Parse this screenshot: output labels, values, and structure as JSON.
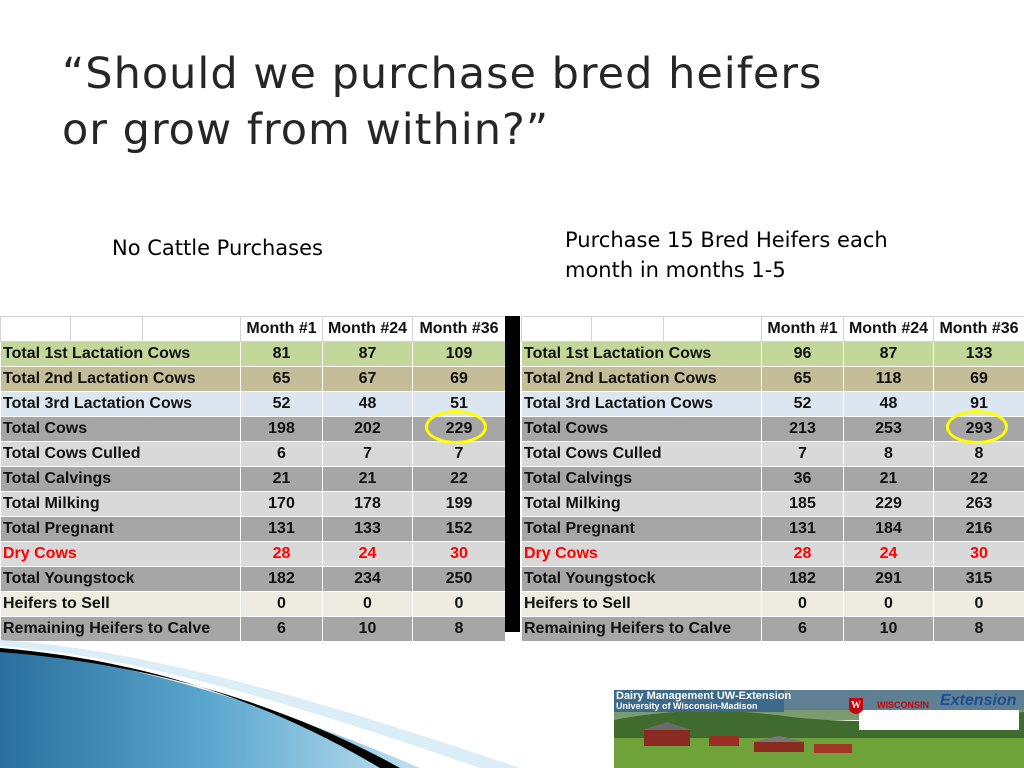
{
  "slide": {
    "title_line1": "“Should we purchase bred heifers",
    "title_line2": "or grow from within?”"
  },
  "scenarios": {
    "left_label": "No Cattle Purchases",
    "right_label_line1": "Purchase 15 Bred Heifers each",
    "right_label_line2": "month in months 1-5"
  },
  "table_left": {
    "headers": [
      "Month #1",
      "Month #24",
      "Month #36"
    ],
    "rows": [
      {
        "label": "Total 1st Lactation Cows",
        "values": [
          "81",
          "87",
          "109"
        ]
      },
      {
        "label": "Total 2nd Lactation Cows",
        "values": [
          "65",
          "67",
          "69"
        ]
      },
      {
        "label": "Total 3rd Lactation Cows",
        "values": [
          "52",
          "48",
          "51"
        ]
      },
      {
        "label": "Total Cows",
        "values": [
          "198",
          "202",
          "229"
        ]
      },
      {
        "label": "Total Cows Culled",
        "values": [
          "6",
          "7",
          "7"
        ]
      },
      {
        "label": "Total Calvings",
        "values": [
          "21",
          "21",
          "22"
        ]
      },
      {
        "label": "Total Milking",
        "values": [
          "170",
          "178",
          "199"
        ]
      },
      {
        "label": "Total Pregnant",
        "values": [
          "131",
          "133",
          "152"
        ]
      },
      {
        "label": "Dry Cows",
        "values": [
          "28",
          "24",
          "30"
        ]
      },
      {
        "label": "Total Youngstock",
        "values": [
          "182",
          "234",
          "250"
        ]
      },
      {
        "label": "Heifers to Sell",
        "values": [
          "0",
          "0",
          "0"
        ]
      },
      {
        "label": "Remaining Heifers to Calve",
        "values": [
          "6",
          "10",
          "8"
        ]
      }
    ]
  },
  "table_right": {
    "headers": [
      "Month #1",
      "Month #24",
      "Month #36"
    ],
    "rows": [
      {
        "label": "Total 1st Lactation Cows",
        "values": [
          "96",
          "87",
          "133"
        ]
      },
      {
        "label": "Total 2nd Lactation Cows",
        "values": [
          "65",
          "118",
          "69"
        ]
      },
      {
        "label": "Total 3rd Lactation Cows",
        "values": [
          "52",
          "48",
          "91"
        ]
      },
      {
        "label": "Total Cows",
        "values": [
          "213",
          "253",
          "293"
        ]
      },
      {
        "label": "Total Cows Culled",
        "values": [
          "7",
          "8",
          "8"
        ]
      },
      {
        "label": "Total Calvings",
        "values": [
          "36",
          "21",
          "22"
        ]
      },
      {
        "label": "Total Milking",
        "values": [
          "185",
          "229",
          "263"
        ]
      },
      {
        "label": "Total Pregnant",
        "values": [
          "131",
          "184",
          "216"
        ]
      },
      {
        "label": "Dry Cows",
        "values": [
          "28",
          "24",
          "30"
        ]
      },
      {
        "label": "Total Youngstock",
        "values": [
          "182",
          "291",
          "315"
        ]
      },
      {
        "label": "Heifers to Sell",
        "values": [
          "0",
          "0",
          "0"
        ]
      },
      {
        "label": "Remaining Heifers to Calve",
        "values": [
          "6",
          "10",
          "8"
        ]
      }
    ]
  },
  "highlight": {
    "color": "#ffff00",
    "left_value": "229",
    "right_value": "293"
  },
  "colors": {
    "row_green": "#c4d79b",
    "row_tan": "#c4bd97",
    "row_blue": "#dce6f1",
    "row_grey": "#a6a6a6",
    "row_light": "#d9d9d9",
    "row_cream": "#eeece1",
    "dry_cows_text": "#ff0000"
  },
  "logo": {
    "line1": "Dairy Management UW-Extension",
    "line2": "University of Wisconsin-Madison",
    "university": "WISCONSIN",
    "extension": "Extension"
  }
}
